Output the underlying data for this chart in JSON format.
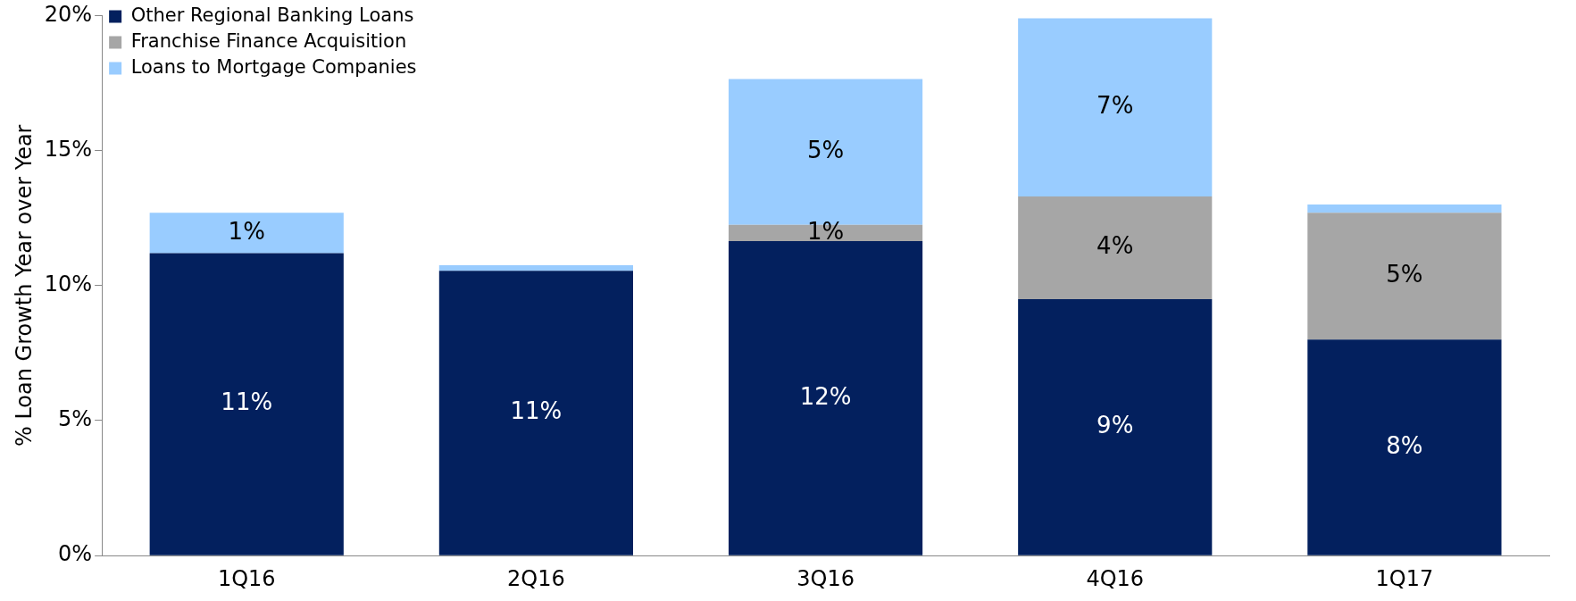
{
  "chart_data": {
    "type": "bar",
    "stacked": true,
    "ylabel": "% Loan Growth Year over Year",
    "categories": [
      "1Q16",
      "2Q16",
      "3Q16",
      "4Q16",
      "1Q17"
    ],
    "series": [
      {
        "name": "Other Regional Banking Loans",
        "color": "#03205e",
        "values": [
          11.2,
          10.55,
          11.65,
          9.5,
          8.0
        ],
        "value_labels": [
          "11%",
          "11%",
          "12%",
          "9%",
          "8%"
        ]
      },
      {
        "name": "Franchise Finance Acquisition",
        "color": "#a6a6a6",
        "values": [
          0,
          0,
          0.6,
          3.8,
          4.7
        ],
        "value_labels": [
          null,
          null,
          "1%",
          "4%",
          "5%"
        ]
      },
      {
        "name": "Loans to Mortgage Companies",
        "color": "#99ccff",
        "values": [
          1.5,
          0.2,
          5.4,
          6.6,
          0.3
        ],
        "value_labels": [
          "1%",
          null,
          "5%",
          "7%",
          null
        ]
      }
    ],
    "ylim": [
      0,
      20
    ],
    "yticks": [
      {
        "value": 0,
        "label": "0%"
      },
      {
        "value": 5,
        "label": "5%"
      },
      {
        "value": 10,
        "label": "10%"
      },
      {
        "value": 15,
        "label": "15%"
      },
      {
        "value": 20,
        "label": "20%"
      }
    ],
    "grid": false,
    "legend": "top left"
  }
}
